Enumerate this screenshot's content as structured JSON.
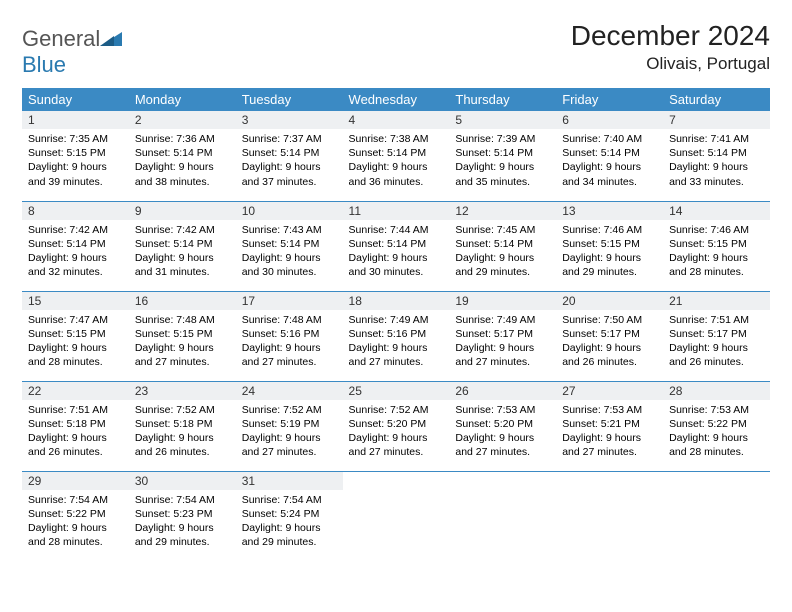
{
  "brand": {
    "part1": "General",
    "part2": "Blue"
  },
  "title": "December 2024",
  "location": "Olivais, Portugal",
  "colors": {
    "header_bg": "#3b8ac4",
    "header_text": "#ffffff",
    "daynum_bg": "#eef0f2",
    "border": "#3b8ac4",
    "brand_gray": "#555555",
    "brand_blue": "#2a7ab0"
  },
  "weekdays": [
    "Sunday",
    "Monday",
    "Tuesday",
    "Wednesday",
    "Thursday",
    "Friday",
    "Saturday"
  ],
  "weeks": [
    [
      {
        "n": "1",
        "sr": "Sunrise: 7:35 AM",
        "ss": "Sunset: 5:15 PM",
        "d1": "Daylight: 9 hours",
        "d2": "and 39 minutes."
      },
      {
        "n": "2",
        "sr": "Sunrise: 7:36 AM",
        "ss": "Sunset: 5:14 PM",
        "d1": "Daylight: 9 hours",
        "d2": "and 38 minutes."
      },
      {
        "n": "3",
        "sr": "Sunrise: 7:37 AM",
        "ss": "Sunset: 5:14 PM",
        "d1": "Daylight: 9 hours",
        "d2": "and 37 minutes."
      },
      {
        "n": "4",
        "sr": "Sunrise: 7:38 AM",
        "ss": "Sunset: 5:14 PM",
        "d1": "Daylight: 9 hours",
        "d2": "and 36 minutes."
      },
      {
        "n": "5",
        "sr": "Sunrise: 7:39 AM",
        "ss": "Sunset: 5:14 PM",
        "d1": "Daylight: 9 hours",
        "d2": "and 35 minutes."
      },
      {
        "n": "6",
        "sr": "Sunrise: 7:40 AM",
        "ss": "Sunset: 5:14 PM",
        "d1": "Daylight: 9 hours",
        "d2": "and 34 minutes."
      },
      {
        "n": "7",
        "sr": "Sunrise: 7:41 AM",
        "ss": "Sunset: 5:14 PM",
        "d1": "Daylight: 9 hours",
        "d2": "and 33 minutes."
      }
    ],
    [
      {
        "n": "8",
        "sr": "Sunrise: 7:42 AM",
        "ss": "Sunset: 5:14 PM",
        "d1": "Daylight: 9 hours",
        "d2": "and 32 minutes."
      },
      {
        "n": "9",
        "sr": "Sunrise: 7:42 AM",
        "ss": "Sunset: 5:14 PM",
        "d1": "Daylight: 9 hours",
        "d2": "and 31 minutes."
      },
      {
        "n": "10",
        "sr": "Sunrise: 7:43 AM",
        "ss": "Sunset: 5:14 PM",
        "d1": "Daylight: 9 hours",
        "d2": "and 30 minutes."
      },
      {
        "n": "11",
        "sr": "Sunrise: 7:44 AM",
        "ss": "Sunset: 5:14 PM",
        "d1": "Daylight: 9 hours",
        "d2": "and 30 minutes."
      },
      {
        "n": "12",
        "sr": "Sunrise: 7:45 AM",
        "ss": "Sunset: 5:14 PM",
        "d1": "Daylight: 9 hours",
        "d2": "and 29 minutes."
      },
      {
        "n": "13",
        "sr": "Sunrise: 7:46 AM",
        "ss": "Sunset: 5:15 PM",
        "d1": "Daylight: 9 hours",
        "d2": "and 29 minutes."
      },
      {
        "n": "14",
        "sr": "Sunrise: 7:46 AM",
        "ss": "Sunset: 5:15 PM",
        "d1": "Daylight: 9 hours",
        "d2": "and 28 minutes."
      }
    ],
    [
      {
        "n": "15",
        "sr": "Sunrise: 7:47 AM",
        "ss": "Sunset: 5:15 PM",
        "d1": "Daylight: 9 hours",
        "d2": "and 28 minutes."
      },
      {
        "n": "16",
        "sr": "Sunrise: 7:48 AM",
        "ss": "Sunset: 5:15 PM",
        "d1": "Daylight: 9 hours",
        "d2": "and 27 minutes."
      },
      {
        "n": "17",
        "sr": "Sunrise: 7:48 AM",
        "ss": "Sunset: 5:16 PM",
        "d1": "Daylight: 9 hours",
        "d2": "and 27 minutes."
      },
      {
        "n": "18",
        "sr": "Sunrise: 7:49 AM",
        "ss": "Sunset: 5:16 PM",
        "d1": "Daylight: 9 hours",
        "d2": "and 27 minutes."
      },
      {
        "n": "19",
        "sr": "Sunrise: 7:49 AM",
        "ss": "Sunset: 5:17 PM",
        "d1": "Daylight: 9 hours",
        "d2": "and 27 minutes."
      },
      {
        "n": "20",
        "sr": "Sunrise: 7:50 AM",
        "ss": "Sunset: 5:17 PM",
        "d1": "Daylight: 9 hours",
        "d2": "and 26 minutes."
      },
      {
        "n": "21",
        "sr": "Sunrise: 7:51 AM",
        "ss": "Sunset: 5:17 PM",
        "d1": "Daylight: 9 hours",
        "d2": "and 26 minutes."
      }
    ],
    [
      {
        "n": "22",
        "sr": "Sunrise: 7:51 AM",
        "ss": "Sunset: 5:18 PM",
        "d1": "Daylight: 9 hours",
        "d2": "and 26 minutes."
      },
      {
        "n": "23",
        "sr": "Sunrise: 7:52 AM",
        "ss": "Sunset: 5:18 PM",
        "d1": "Daylight: 9 hours",
        "d2": "and 26 minutes."
      },
      {
        "n": "24",
        "sr": "Sunrise: 7:52 AM",
        "ss": "Sunset: 5:19 PM",
        "d1": "Daylight: 9 hours",
        "d2": "and 27 minutes."
      },
      {
        "n": "25",
        "sr": "Sunrise: 7:52 AM",
        "ss": "Sunset: 5:20 PM",
        "d1": "Daylight: 9 hours",
        "d2": "and 27 minutes."
      },
      {
        "n": "26",
        "sr": "Sunrise: 7:53 AM",
        "ss": "Sunset: 5:20 PM",
        "d1": "Daylight: 9 hours",
        "d2": "and 27 minutes."
      },
      {
        "n": "27",
        "sr": "Sunrise: 7:53 AM",
        "ss": "Sunset: 5:21 PM",
        "d1": "Daylight: 9 hours",
        "d2": "and 27 minutes."
      },
      {
        "n": "28",
        "sr": "Sunrise: 7:53 AM",
        "ss": "Sunset: 5:22 PM",
        "d1": "Daylight: 9 hours",
        "d2": "and 28 minutes."
      }
    ],
    [
      {
        "n": "29",
        "sr": "Sunrise: 7:54 AM",
        "ss": "Sunset: 5:22 PM",
        "d1": "Daylight: 9 hours",
        "d2": "and 28 minutes."
      },
      {
        "n": "30",
        "sr": "Sunrise: 7:54 AM",
        "ss": "Sunset: 5:23 PM",
        "d1": "Daylight: 9 hours",
        "d2": "and 29 minutes."
      },
      {
        "n": "31",
        "sr": "Sunrise: 7:54 AM",
        "ss": "Sunset: 5:24 PM",
        "d1": "Daylight: 9 hours",
        "d2": "and 29 minutes."
      },
      null,
      null,
      null,
      null
    ]
  ]
}
